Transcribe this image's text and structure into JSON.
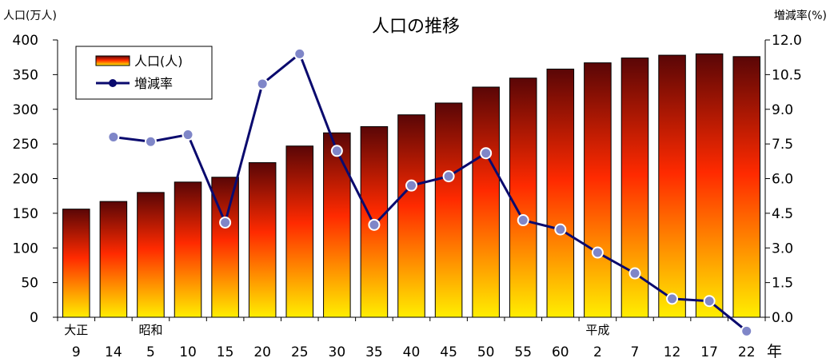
{
  "chart_data": {
    "type": "bar",
    "title": "人口の推移",
    "ylabel_left": "人口(万人)",
    "ylabel_right": "増減率(%)",
    "xlabel": "年",
    "categories": [
      "9",
      "14",
      "5",
      "10",
      "15",
      "20",
      "25",
      "30",
      "35",
      "40",
      "45",
      "50",
      "55",
      "60",
      "2",
      "7",
      "12",
      "17",
      "22"
    ],
    "era_labels": [
      {
        "text": "大正",
        "index": 0
      },
      {
        "text": "昭和",
        "index": 2
      },
      {
        "text": "平成",
        "index": 14
      }
    ],
    "ylim_left": [
      0,
      400
    ],
    "yticks_left": [
      "0",
      "50",
      "100",
      "150",
      "200",
      "250",
      "300",
      "350",
      "400"
    ],
    "ylim_right": [
      0,
      12
    ],
    "yticks_right": [
      "0.0",
      "1.5",
      "3.0",
      "4.5",
      "6.0",
      "7.5",
      "9.0",
      "10.5",
      "12.0"
    ],
    "legend_position": "top-left",
    "series": [
      {
        "name": "人口(人)",
        "type": "bar",
        "axis": "left",
        "values": [
          156,
          167,
          180,
          195,
          202,
          223,
          247,
          266,
          275,
          292,
          309,
          332,
          345,
          358,
          367,
          374,
          378,
          380,
          376
        ]
      },
      {
        "name": "増減率",
        "type": "line",
        "axis": "right",
        "color": "#0a0a6e",
        "values": [
          null,
          7.8,
          7.6,
          7.9,
          4.1,
          10.1,
          11.4,
          7.2,
          4.0,
          5.7,
          6.1,
          7.1,
          4.2,
          3.8,
          2.8,
          1.9,
          0.8,
          0.7,
          -0.6
        ]
      }
    ],
    "colors": {
      "bar_top": "#5a0606",
      "bar_mid": "#ff2a00",
      "bar_bottom": "#ffee00",
      "line": "#0a0a6e",
      "marker_fill": "#7f86c8"
    }
  }
}
